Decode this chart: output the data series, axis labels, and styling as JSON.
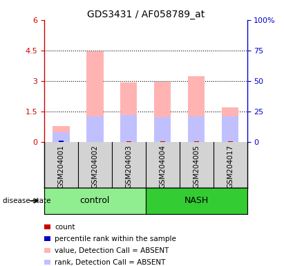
{
  "title": "GDS3431 / AF058789_at",
  "samples": [
    "GSM204001",
    "GSM204002",
    "GSM204003",
    "GSM204004",
    "GSM204005",
    "GSM204017"
  ],
  "group_labels": [
    "control",
    "NASH"
  ],
  "control_color": "#90ee90",
  "nash_color": "#33cc33",
  "bar_color_absent_value": "#ffb3b3",
  "bar_color_absent_rank": "#c0c0ff",
  "bar_color_count": "#cc0000",
  "bar_color_pctrank": "#0000cc",
  "value_absent": [
    0.8,
    4.45,
    2.95,
    2.97,
    3.25,
    1.72
  ],
  "rank_absent": [
    0.5,
    1.27,
    1.33,
    1.23,
    1.28,
    1.28
  ],
  "count_values": [
    0.05,
    0.03,
    0.04,
    0.04,
    0.04,
    0.04
  ],
  "pctrank_values": [
    0.08,
    0.0,
    0.0,
    0.0,
    0.0,
    0.0
  ],
  "left_ylim": [
    0,
    6
  ],
  "left_yticks": [
    0,
    1.5,
    3,
    4.5,
    6
  ],
  "left_yticklabels": [
    "0",
    "1.5",
    "3",
    "4.5",
    "6"
  ],
  "right_ylim": [
    0,
    100
  ],
  "right_yticks": [
    0,
    25,
    50,
    75,
    100
  ],
  "right_yticklabels": [
    "0",
    "25",
    "50",
    "75",
    "100%"
  ],
  "left_axis_color": "#cc0000",
  "right_axis_color": "#0000cc",
  "sample_bg_color": "#d3d3d3",
  "bar_width": 0.28,
  "legend_items": [
    {
      "label": "count",
      "color": "#cc0000"
    },
    {
      "label": "percentile rank within the sample",
      "color": "#0000cc"
    },
    {
      "label": "value, Detection Call = ABSENT",
      "color": "#ffb3b3"
    },
    {
      "label": "rank, Detection Call = ABSENT",
      "color": "#c0c0ff"
    }
  ]
}
